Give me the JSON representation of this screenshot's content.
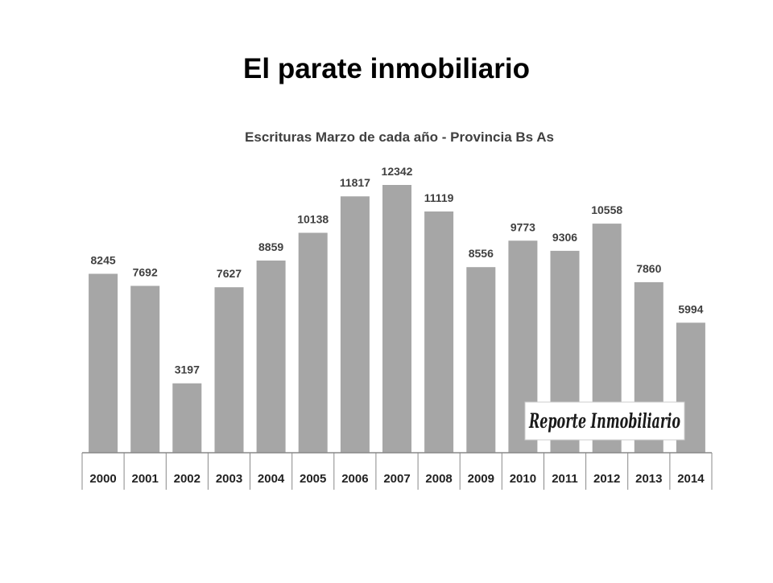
{
  "slide": {
    "title": "El parate inmobiliario"
  },
  "watermark": {
    "text": "Reporte Inmobiliario"
  },
  "chart_data": {
    "type": "bar",
    "title": "Escrituras Marzo de cada año - Provincia Bs As",
    "xlabel": "",
    "ylabel": "",
    "categories": [
      "2000",
      "2001",
      "2002",
      "2003",
      "2004",
      "2005",
      "2006",
      "2007",
      "2008",
      "2009",
      "2010",
      "2011",
      "2012",
      "2013",
      "2014"
    ],
    "values": [
      8245,
      7692,
      3197,
      7627,
      8859,
      10138,
      11817,
      12342,
      11119,
      8556,
      9773,
      9306,
      10558,
      7860,
      5994
    ],
    "ylim": [
      0,
      12342
    ],
    "grid": false,
    "bar_color": "#a6a6a6",
    "axis_color": "#888888"
  }
}
